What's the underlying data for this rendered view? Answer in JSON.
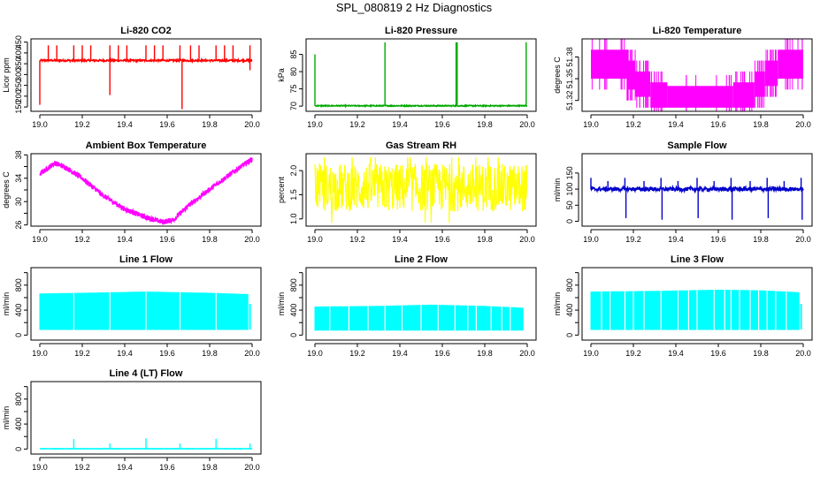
{
  "page": {
    "title": "SPL_080819  2 Hz Diagnostics"
  },
  "chart_data": [
    {
      "type": "line",
      "title": "Li-820 CO2",
      "ylabel": "Licor ppm",
      "xlabel": "",
      "xlim": [
        19.0,
        20.0
      ],
      "ylim": [
        130,
        465
      ],
      "xticks": [
        19.0,
        19.2,
        19.4,
        19.6,
        19.8,
        20.0
      ],
      "xtick_labels": [
        "19.0",
        "19.2",
        "19.4",
        "19.6",
        "19.8",
        "20.0"
      ],
      "yticks": [
        150,
        200,
        250,
        300,
        350,
        400,
        450
      ],
      "ytick_labels": [
        "150",
        "200",
        "250",
        "300",
        "350",
        "400",
        "450"
      ],
      "color": "#ff0000",
      "style": "spiky",
      "series": [
        {
          "base": 365,
          "noise": 4,
          "spikes": [
            [
              19.0,
              160
            ],
            [
              19.04,
              435
            ],
            [
              19.08,
              435
            ],
            [
              19.16,
              435
            ],
            [
              19.2,
              435
            ],
            [
              19.24,
              435
            ],
            [
              19.33,
              435
            ],
            [
              19.33,
              205
            ],
            [
              19.37,
              435
            ],
            [
              19.41,
              435
            ],
            [
              19.5,
              435
            ],
            [
              19.54,
              435
            ],
            [
              19.58,
              435
            ],
            [
              19.66,
              435
            ],
            [
              19.67,
              140
            ],
            [
              19.71,
              435
            ],
            [
              19.75,
              435
            ],
            [
              19.83,
              435
            ],
            [
              19.87,
              435
            ],
            [
              19.91,
              435
            ],
            [
              19.99,
              435
            ],
            [
              19.99,
              320
            ]
          ]
        }
      ]
    },
    {
      "type": "line",
      "title": "Li-820 Pressure",
      "ylabel": "kPa",
      "xlabel": "",
      "xlim": [
        19.0,
        20.0
      ],
      "ylim": [
        68.5,
        89.5
      ],
      "xticks": [
        19.0,
        19.2,
        19.4,
        19.6,
        19.8,
        20.0
      ],
      "xtick_labels": [
        "19.0",
        "19.2",
        "19.4",
        "19.6",
        "19.8",
        "20.0"
      ],
      "yticks": [
        70,
        75,
        80,
        85
      ],
      "ytick_labels": [
        "70",
        "75",
        "80",
        "85"
      ],
      "color": "#00aa00",
      "style": "spiky",
      "series": [
        {
          "base": 70.1,
          "noise": 0.15,
          "spikes": [
            [
              19.0,
              85
            ],
            [
              19.33,
              88.5
            ],
            [
              19.665,
              88.5
            ],
            [
              19.67,
              88.5
            ],
            [
              19.995,
              88.5
            ]
          ]
        }
      ]
    },
    {
      "type": "line",
      "title": "Li-820 Temperature",
      "ylabel": "degrees C",
      "xlabel": "",
      "xlim": [
        19.0,
        20.0
      ],
      "ylim": [
        51.305,
        51.405
      ],
      "xticks": [
        19.0,
        19.2,
        19.4,
        19.6,
        19.8,
        20.0
      ],
      "xtick_labels": [
        "19.0",
        "19.2",
        "19.4",
        "19.6",
        "19.8",
        "20.0"
      ],
      "yticks": [
        51.32,
        51.35,
        51.38
      ],
      "ytick_labels": [
        "51.32",
        "51.35",
        "51.38"
      ],
      "color": "#ff00ff",
      "style": "steps",
      "series": [
        {
          "segments": [
            [
              19.0,
              19.17,
              51.39,
              51.35
            ],
            [
              19.17,
              19.21,
              51.375,
              51.335
            ],
            [
              19.21,
              19.28,
              51.36,
              51.325
            ],
            [
              19.28,
              19.36,
              51.345,
              51.31
            ],
            [
              19.36,
              19.67,
              51.34,
              51.31
            ],
            [
              19.67,
              19.77,
              51.345,
              51.31
            ],
            [
              19.77,
              19.82,
              51.36,
              51.325
            ],
            [
              19.82,
              19.88,
              51.375,
              51.34
            ],
            [
              19.88,
              20.0,
              51.39,
              51.35
            ]
          ]
        }
      ]
    },
    {
      "type": "line",
      "title": "Ambient Box Temperature",
      "ylabel": "degrees C",
      "xlabel": "",
      "xlim": [
        19.0,
        20.0
      ],
      "ylim": [
        25.8,
        38.2
      ],
      "xticks": [
        19.0,
        19.2,
        19.4,
        19.6,
        19.8,
        20.0
      ],
      "xtick_labels": [
        "19.0",
        "19.2",
        "19.4",
        "19.6",
        "19.8",
        "20.0"
      ],
      "yticks": [
        26,
        28,
        30,
        32,
        34,
        36,
        38
      ],
      "ytick_labels": [
        "26",
        "",
        "30",
        "",
        "34",
        "",
        "38"
      ],
      "color": "#ff00ff",
      "style": "band",
      "series": [
        {
          "curve": [
            [
              19.0,
              34.7
            ],
            [
              19.07,
              36.6
            ],
            [
              19.12,
              35.9
            ],
            [
              19.2,
              34.0
            ],
            [
              19.3,
              31.0
            ],
            [
              19.4,
              28.7
            ],
            [
              19.5,
              27.3
            ],
            [
              19.58,
              26.5
            ],
            [
              19.63,
              26.9
            ],
            [
              19.7,
              29.3
            ],
            [
              19.8,
              32.1
            ],
            [
              19.9,
              34.8
            ],
            [
              20.0,
              37.3
            ]
          ],
          "spread": 0.45
        }
      ]
    },
    {
      "type": "line",
      "title": "Gas Stream RH",
      "ylabel": "percent",
      "xlabel": "",
      "xlim": [
        19.0,
        20.0
      ],
      "ylim": [
        0.85,
        2.35
      ],
      "xticks": [
        19.0,
        19.2,
        19.4,
        19.6,
        19.8,
        20.0
      ],
      "xtick_labels": [
        "19.0",
        "19.2",
        "19.4",
        "19.6",
        "19.8",
        "20.0"
      ],
      "yticks": [
        1.0,
        1.5,
        2.0
      ],
      "ytick_labels": [
        "1.0",
        "1.5",
        "2.0"
      ],
      "color": "#ffff00",
      "style": "noise",
      "series": [
        {
          "mid": 1.65,
          "amp": 0.5,
          "extremes": [
            0.92,
            2.28
          ]
        }
      ]
    },
    {
      "type": "line",
      "title": "Sample Flow",
      "ylabel": "ml/min",
      "xlabel": "",
      "xlim": [
        19.0,
        20.0
      ],
      "ylim": [
        -15,
        210
      ],
      "xticks": [
        19.0,
        19.2,
        19.4,
        19.6,
        19.8,
        20.0
      ],
      "xtick_labels": [
        "19.0",
        "19.2",
        "19.4",
        "19.6",
        "19.8",
        "20.0"
      ],
      "yticks": [
        0,
        50,
        100,
        150
      ],
      "ytick_labels": [
        "0",
        "50",
        "100",
        "150"
      ],
      "color": "#0000cc",
      "style": "spiky",
      "series": [
        {
          "base": 100,
          "noise": 6,
          "spikes": [
            [
              19.0,
              135
            ],
            [
              19.16,
              135
            ],
            [
              19.165,
              10
            ],
            [
              19.33,
              135
            ],
            [
              19.335,
              5
            ],
            [
              19.5,
              135
            ],
            [
              19.505,
              10
            ],
            [
              19.66,
              135
            ],
            [
              19.665,
              5
            ],
            [
              19.83,
              135
            ],
            [
              19.835,
              10
            ],
            [
              19.99,
              135
            ],
            [
              19.995,
              5
            ],
            [
              19.08,
              125
            ],
            [
              19.25,
              125
            ],
            [
              19.41,
              125
            ],
            [
              19.58,
              125
            ],
            [
              19.75,
              125
            ],
            [
              19.91,
              125
            ]
          ]
        }
      ]
    },
    {
      "type": "area",
      "title": "Line 1 Flow",
      "ylabel": "ml/min",
      "xlabel": "",
      "xlim": [
        19.0,
        20.0
      ],
      "ylim": [
        -80,
        1080
      ],
      "xticks": [
        19.0,
        19.2,
        19.4,
        19.6,
        19.8,
        20.0
      ],
      "xtick_labels": [
        "19.0",
        "19.2",
        "19.4",
        "19.6",
        "19.8",
        "20.0"
      ],
      "yticks": [
        0,
        200,
        400,
        600,
        800,
        1000
      ],
      "ytick_labels": [
        "0",
        "",
        "400",
        "",
        "800",
        ""
      ],
      "color": "#00ffff",
      "style": "block",
      "series": [
        {
          "low": 90,
          "high": [
            [
              19.0,
              660
            ],
            [
              19.2,
              670
            ],
            [
              19.5,
              690
            ],
            [
              19.8,
              670
            ],
            [
              19.98,
              650
            ]
          ],
          "gaps": [
            19.16,
            19.33,
            19.5,
            19.66,
            19.83
          ],
          "tail": [
            19.99,
            500
          ]
        }
      ]
    },
    {
      "type": "area",
      "title": "Line 2 Flow",
      "ylabel": "ml/min",
      "xlabel": "",
      "xlim": [
        19.0,
        20.0
      ],
      "ylim": [
        -80,
        1080
      ],
      "xticks": [
        19.0,
        19.2,
        19.4,
        19.6,
        19.8,
        20.0
      ],
      "xtick_labels": [
        "19.0",
        "19.2",
        "19.4",
        "19.6",
        "19.8",
        "20.0"
      ],
      "yticks": [
        0,
        200,
        400,
        600,
        800,
        1000
      ],
      "ytick_labels": [
        "0",
        "",
        "400",
        "",
        "800",
        ""
      ],
      "color": "#00ffff",
      "style": "block",
      "series": [
        {
          "low": 80,
          "high": [
            [
              19.0,
              450
            ],
            [
              19.3,
              460
            ],
            [
              19.55,
              480
            ],
            [
              19.8,
              460
            ],
            [
              19.99,
              430
            ]
          ],
          "gaps": [
            19.07,
            19.16,
            19.25,
            19.33,
            19.41,
            19.5,
            19.58,
            19.66,
            19.72,
            19.76,
            19.83,
            19.88,
            19.92
          ],
          "tail": null
        }
      ]
    },
    {
      "type": "area",
      "title": "Line 3 Flow",
      "ylabel": "ml/min",
      "xlabel": "",
      "xlim": [
        19.0,
        20.0
      ],
      "ylim": [
        -80,
        1080
      ],
      "xticks": [
        19.0,
        19.2,
        19.4,
        19.6,
        19.8,
        20.0
      ],
      "xtick_labels": [
        "19.0",
        "19.2",
        "19.4",
        "19.6",
        "19.8",
        "20.0"
      ],
      "yticks": [
        0,
        200,
        400,
        600,
        800,
        1000
      ],
      "ytick_labels": [
        "0",
        "",
        "400",
        "",
        "800",
        ""
      ],
      "color": "#00ffff",
      "style": "block",
      "series": [
        {
          "low": 90,
          "high": [
            [
              19.0,
              690
            ],
            [
              19.3,
              700
            ],
            [
              19.6,
              720
            ],
            [
              19.8,
              710
            ],
            [
              19.98,
              680
            ]
          ],
          "gaps": [
            19.05,
            19.09,
            19.16,
            19.2,
            19.25,
            19.33,
            19.41,
            19.46,
            19.5,
            19.58,
            19.63,
            19.66,
            19.7,
            19.75,
            19.79,
            19.83,
            19.87,
            19.92
          ],
          "tail": [
            19.99,
            500
          ]
        }
      ]
    },
    {
      "type": "line",
      "title": "Line 4 (LT) Flow",
      "ylabel": "ml/min",
      "xlabel": "",
      "xlim": [
        19.0,
        20.0
      ],
      "ylim": [
        -80,
        1080
      ],
      "xticks": [
        19.0,
        19.2,
        19.4,
        19.6,
        19.8,
        20.0
      ],
      "xtick_labels": [
        "19.0",
        "19.2",
        "19.4",
        "19.6",
        "19.8",
        "20.0"
      ],
      "yticks": [
        0,
        200,
        400,
        600,
        800,
        1000
      ],
      "ytick_labels": [
        "0",
        "",
        "400",
        "",
        "800",
        ""
      ],
      "color": "#00ffff",
      "style": "spiky",
      "series": [
        {
          "base": 5,
          "noise": 3,
          "spikes": [
            [
              19.16,
              160
            ],
            [
              19.33,
              90
            ],
            [
              19.5,
              170
            ],
            [
              19.66,
              90
            ],
            [
              19.83,
              165
            ],
            [
              19.99,
              90
            ]
          ]
        }
      ]
    }
  ]
}
